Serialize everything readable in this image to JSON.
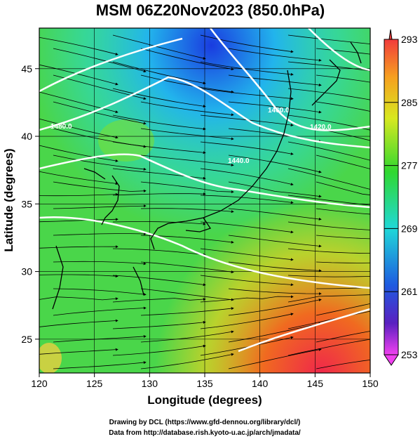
{
  "title": "MSM 06Z20Nov2023 (850.0hPa)",
  "xlabel": "Longitude (degrees)",
  "ylabel": "Latitude  (degrees)",
  "x_ticks": [
    "120",
    "125",
    "130",
    "135",
    "140",
    "145",
    "150"
  ],
  "y_ticks": [
    "25",
    "30",
    "35",
    "40",
    "45"
  ],
  "colorbar": {
    "min": 253,
    "max": 293,
    "ticks": [
      "293",
      "285",
      "277",
      "269",
      "261",
      "253"
    ]
  },
  "contour_labels": [
    "1480.0",
    "1460.0",
    "1440.0",
    "1420.0"
  ],
  "credits": {
    "line1": "Drawing by DCL (https://www.gfd-dennou.org/library/dcl/)",
    "line2": "Data from http://database.rish.kyoto-u.ac.jp/arch/jmadata/"
  },
  "colors": {
    "cold": "#1e50d8",
    "cool": "#22c8e8",
    "mild": "#38d838",
    "warm": "#c8e020",
    "hot": "#f03020"
  }
}
